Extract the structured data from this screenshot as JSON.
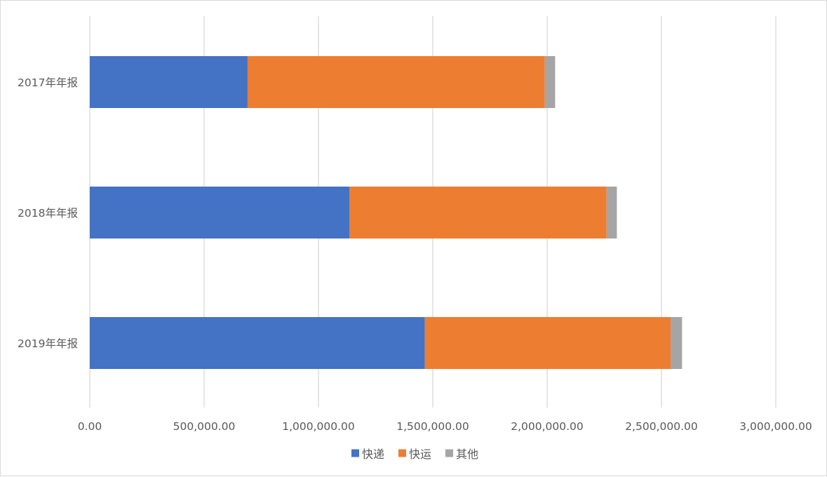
{
  "chart_data": {
    "type": "bar",
    "orientation": "horizontal",
    "stacked": true,
    "title": "",
    "xlabel": "",
    "ylabel": "",
    "categories": [
      "2017年年报",
      "2018年年报",
      "2019年年报"
    ],
    "series": [
      {
        "name": "快递",
        "color": "#4472c4",
        "values": [
          690000,
          1135000,
          1465000
        ]
      },
      {
        "name": "快运",
        "color": "#ed7d31",
        "values": [
          1300000,
          1125000,
          1075000
        ]
      },
      {
        "name": "其他",
        "color": "#a5a5a5",
        "values": [
          45000,
          45000,
          50000
        ]
      }
    ],
    "xlim": [
      0,
      3000000
    ],
    "x_ticks": [
      0,
      500000,
      1000000,
      1500000,
      2000000,
      2500000,
      3000000
    ],
    "x_tick_labels": [
      "0.00",
      "500,000.00",
      "1,000,000.00",
      "1,500,000.00",
      "2,000,000.00",
      "2,500,000.00",
      "3,000,000.00"
    ],
    "grid": "vertical",
    "legend": "bottom"
  }
}
